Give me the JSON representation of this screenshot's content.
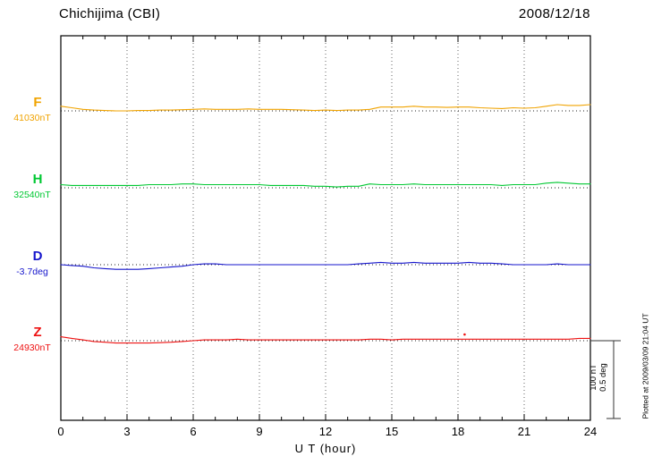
{
  "chart_data": {
    "type": "line",
    "title": "Chichijima (CBI)",
    "date": "2008/12/18",
    "xlabel": "U T (hour)",
    "x_ticks": [
      0,
      3,
      6,
      9,
      12,
      15,
      18,
      21,
      24
    ],
    "x_range": [
      0,
      24
    ],
    "x_step_hours": 0.5,
    "grid": "dotted vertical lines every 3 hours; dotted horizontal baseline per trace",
    "scale_bar": {
      "nt": 100,
      "deg": 0.5,
      "nt_label": "100 nT",
      "deg_label": "0.5 deg"
    },
    "plotted_at": "Plotted at 2009/03/09 21:04 UT",
    "series": [
      {
        "name": "F",
        "baseline_label": "41030nT",
        "baseline_value": 41030,
        "unit": "nT",
        "color": "#f0a300",
        "offsets": [
          6,
          4,
          2,
          1,
          0.5,
          0,
          0,
          0.5,
          0.5,
          1,
          1,
          1.5,
          2,
          2.5,
          2,
          2,
          2,
          2.5,
          2,
          2,
          2,
          1.5,
          1,
          0.5,
          1,
          0.5,
          1,
          1,
          2,
          5,
          5,
          5,
          6,
          5,
          5,
          4.5,
          5,
          5,
          4,
          3.5,
          3,
          4,
          3.5,
          4,
          6,
          8,
          7,
          7,
          8
        ]
      },
      {
        "name": "H",
        "baseline_label": "32540nT",
        "baseline_value": 32540,
        "unit": "nT",
        "color": "#00c832",
        "offsets": [
          4,
          3,
          3,
          3,
          3,
          3,
          3,
          3,
          4,
          4,
          4,
          5,
          5,
          4,
          4,
          4,
          4,
          4,
          4,
          3,
          3,
          3,
          3,
          2,
          2,
          1,
          2,
          2,
          5,
          4,
          4,
          4,
          5,
          4,
          4,
          4,
          4,
          4,
          4,
          4,
          3,
          4,
          4,
          4,
          6,
          7,
          6,
          5,
          5
        ]
      },
      {
        "name": "D",
        "baseline_label": "-3.7deg",
        "baseline_value": -3.7,
        "unit": "deg",
        "color": "#1515cc",
        "offsets": [
          0,
          -0.005,
          -0.01,
          -0.02,
          -0.025,
          -0.03,
          -0.03,
          -0.03,
          -0.025,
          -0.02,
          -0.015,
          -0.01,
          0,
          0.005,
          0.005,
          0,
          0,
          0,
          0,
          0,
          0,
          0,
          0,
          0,
          0,
          0,
          0,
          0.005,
          0.01,
          0.015,
          0.01,
          0.01,
          0.015,
          0.01,
          0.01,
          0.01,
          0.01,
          0.015,
          0.01,
          0.01,
          0.005,
          0,
          0,
          0,
          0,
          0.005,
          0,
          0,
          0
        ]
      },
      {
        "name": "Z",
        "baseline_label": "24930nT",
        "baseline_value": 24930,
        "unit": "nT",
        "color": "#ee1111",
        "dot": {
          "hour": 18.3,
          "offset": 8
        },
        "offsets": [
          5,
          3,
          1,
          -1,
          -2,
          -3,
          -3,
          -3,
          -3,
          -2.5,
          -2,
          -1,
          0,
          1,
          1,
          1,
          2,
          1,
          1,
          1,
          1,
          1,
          1,
          1,
          1,
          1,
          1,
          1,
          2,
          2,
          1,
          2,
          2,
          2,
          2,
          2,
          2,
          2,
          2,
          2,
          2,
          2,
          2,
          2,
          2,
          2,
          2,
          3,
          3
        ]
      }
    ]
  }
}
